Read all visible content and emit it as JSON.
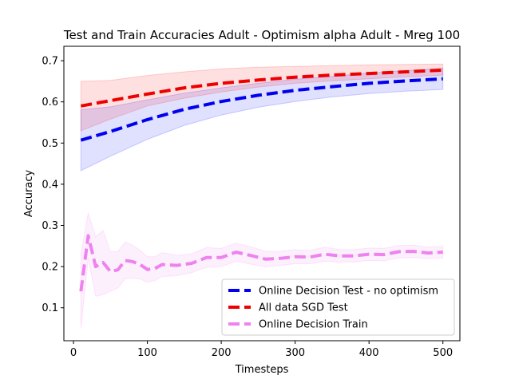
{
  "chart_data": {
    "type": "line",
    "title": "Test and Train Accuracies Adult - Optimism alpha Adult - Mreg 100",
    "xlabel": "Timesteps",
    "ylabel": "Accuracy",
    "xlim": [
      -13,
      523
    ],
    "ylim": [
      0.02,
      0.735
    ],
    "xticks": [
      0,
      100,
      200,
      300,
      400,
      500
    ],
    "yticks": [
      0.1,
      0.2,
      0.3,
      0.4,
      0.5,
      0.6,
      0.7
    ],
    "grid": false,
    "legend_position": "lower-right",
    "series": [
      {
        "name": "Online Decision Test - no optimism",
        "color": "#0000ee",
        "band_color": "#0000ff",
        "x": [
          10,
          50,
          100,
          150,
          200,
          250,
          300,
          350,
          400,
          450,
          500
        ],
        "values": [
          0.507,
          0.528,
          0.557,
          0.582,
          0.601,
          0.616,
          0.628,
          0.637,
          0.645,
          0.651,
          0.656
        ],
        "lower": [
          0.433,
          0.468,
          0.509,
          0.543,
          0.568,
          0.587,
          0.601,
          0.612,
          0.62,
          0.626,
          0.63
        ],
        "upper": [
          0.581,
          0.588,
          0.605,
          0.621,
          0.634,
          0.645,
          0.655,
          0.662,
          0.67,
          0.676,
          0.682
        ]
      },
      {
        "name": "All data SGD Test",
        "color": "#ee0000",
        "band_color": "#ff0000",
        "x": [
          10,
          50,
          100,
          150,
          200,
          250,
          300,
          350,
          400,
          450,
          500
        ],
        "values": [
          0.59,
          0.603,
          0.619,
          0.634,
          0.645,
          0.653,
          0.66,
          0.665,
          0.669,
          0.673,
          0.677
        ],
        "lower": [
          0.53,
          0.558,
          0.59,
          0.609,
          0.624,
          0.636,
          0.645,
          0.651,
          0.656,
          0.661,
          0.665
        ],
        "upper": [
          0.65,
          0.652,
          0.664,
          0.673,
          0.68,
          0.684,
          0.686,
          0.688,
          0.69,
          0.691,
          0.692
        ]
      },
      {
        "name": "Online Decision Train",
        "color": "#ee82ee",
        "band_color": "#ee82ee",
        "x": [
          10,
          20,
          30,
          40,
          50,
          60,
          70,
          80,
          90,
          100,
          110,
          120,
          140,
          160,
          180,
          200,
          220,
          240,
          260,
          280,
          300,
          320,
          340,
          360,
          380,
          400,
          420,
          440,
          460,
          480,
          500
        ],
        "values": [
          0.14,
          0.275,
          0.2,
          0.21,
          0.188,
          0.192,
          0.215,
          0.212,
          0.205,
          0.193,
          0.195,
          0.205,
          0.203,
          0.208,
          0.222,
          0.222,
          0.235,
          0.227,
          0.218,
          0.22,
          0.224,
          0.223,
          0.23,
          0.226,
          0.226,
          0.23,
          0.229,
          0.236,
          0.237,
          0.233,
          0.235
        ],
        "lower": [
          0.05,
          0.22,
          0.128,
          0.132,
          0.14,
          0.148,
          0.17,
          0.172,
          0.17,
          0.162,
          0.166,
          0.176,
          0.178,
          0.185,
          0.198,
          0.2,
          0.213,
          0.206,
          0.199,
          0.203,
          0.207,
          0.207,
          0.213,
          0.211,
          0.211,
          0.215,
          0.214,
          0.221,
          0.222,
          0.219,
          0.221
        ],
        "upper": [
          0.23,
          0.33,
          0.272,
          0.288,
          0.236,
          0.236,
          0.26,
          0.252,
          0.24,
          0.224,
          0.224,
          0.234,
          0.228,
          0.231,
          0.246,
          0.244,
          0.257,
          0.248,
          0.237,
          0.237,
          0.241,
          0.239,
          0.247,
          0.241,
          0.241,
          0.245,
          0.244,
          0.251,
          0.252,
          0.247,
          0.249
        ]
      }
    ]
  }
}
